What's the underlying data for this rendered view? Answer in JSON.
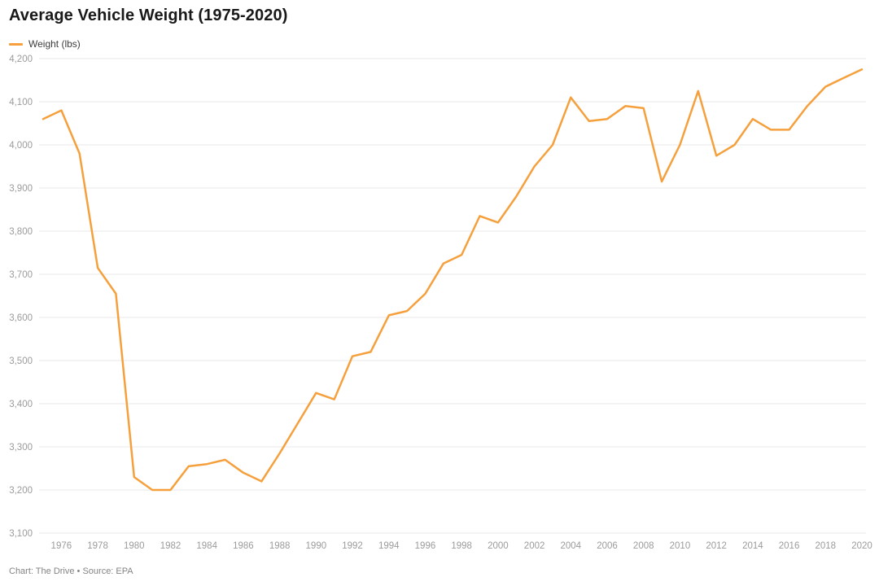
{
  "header": {
    "title": "Average Vehicle Weight (1975-2020)"
  },
  "legend": {
    "label": "Weight (lbs)"
  },
  "footer": {
    "text": "Chart: The Drive • Source: EPA"
  },
  "colors": {
    "line": "#F5A03C",
    "grid": "#e9e9e9",
    "axis_text": "#9b9b9b",
    "title_text": "#191919",
    "legend_text": "#3d3d3d",
    "footer_text": "#848484"
  },
  "chart_data": {
    "type": "line",
    "title": "Average Vehicle Weight (1975-2020)",
    "xlabel": "",
    "ylabel": "Weight (lbs)",
    "grid": "horizontal",
    "legend_position": "top-left",
    "xlim": [
      1975,
      2020
    ],
    "ylim": [
      3100,
      4200
    ],
    "y_ticks": [
      3100,
      3200,
      3300,
      3400,
      3500,
      3600,
      3700,
      3800,
      3900,
      4000,
      4100,
      4200
    ],
    "y_tick_labels": [
      "3,100",
      "3,200",
      "3,300",
      "3,400",
      "3,500",
      "3,600",
      "3,700",
      "3,800",
      "3,900",
      "4,000",
      "4,100",
      "4,200"
    ],
    "x_ticks": [
      1976,
      1978,
      1980,
      1982,
      1984,
      1986,
      1988,
      1990,
      1992,
      1994,
      1996,
      1998,
      2000,
      2002,
      2004,
      2006,
      2008,
      2010,
      2012,
      2014,
      2016,
      2018,
      2020
    ],
    "x_tick_labels": [
      "1976",
      "1978",
      "1980",
      "1982",
      "1984",
      "1986",
      "1988",
      "1990",
      "1992",
      "1994",
      "1996",
      "1998",
      "2000",
      "2002",
      "2004",
      "2006",
      "2008",
      "2010",
      "2012",
      "2014",
      "2016",
      "2018",
      "2020"
    ],
    "series": [
      {
        "name": "Weight (lbs)",
        "color": "#F5A03C",
        "x": [
          1975,
          1976,
          1977,
          1978,
          1979,
          1980,
          1981,
          1982,
          1983,
          1984,
          1985,
          1986,
          1987,
          1988,
          1989,
          1990,
          1991,
          1992,
          1993,
          1994,
          1995,
          1996,
          1997,
          1998,
          1999,
          2000,
          2001,
          2002,
          2003,
          2004,
          2005,
          2006,
          2007,
          2008,
          2009,
          2010,
          2011,
          2012,
          2013,
          2014,
          2015,
          2016,
          2017,
          2018,
          2019,
          2020
        ],
        "values": [
          4060,
          4080,
          3980,
          3715,
          3655,
          3230,
          3200,
          3200,
          3255,
          3260,
          3270,
          3240,
          3220,
          3285,
          3355,
          3425,
          3410,
          3510,
          3520,
          3605,
          3615,
          3655,
          3725,
          3745,
          3835,
          3820,
          3880,
          3950,
          4000,
          4110,
          4055,
          4060,
          4090,
          4085,
          3915,
          4000,
          4125,
          3975,
          4000,
          4060,
          4035,
          4035,
          4090,
          4135,
          4155,
          4175
        ]
      }
    ]
  }
}
